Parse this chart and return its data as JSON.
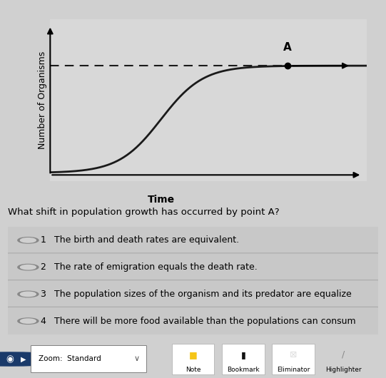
{
  "page_bg": "#d0d0d0",
  "chart_bg": "#d8d8d8",
  "ylabel": "Number of Organisms",
  "xlabel": "Time",
  "ylabel_fontsize": 9,
  "xlabel_fontsize": 10,
  "curve_color": "#1a1a1a",
  "dashed_color": "#1a1a1a",
  "point_A_label": "A",
  "point_A_fontsize": 11,
  "question": "What shift in population growth has occurred by point A?",
  "question_fontsize": 9.5,
  "options": [
    {
      "num": "1",
      "text": "The birth and death rates are equivalent."
    },
    {
      "num": "2",
      "text": "The rate of emigration equals the death rate."
    },
    {
      "num": "3",
      "text": "The population sizes of the organism and its predator are equalize"
    },
    {
      "num": "4",
      "text": "There will be more food available than the populations can consum"
    }
  ],
  "option_fontsize": 9,
  "option_bg": "#c8c8c8",
  "option_border": "#aaaaaa",
  "radio_dark": "#888888",
  "radio_light": "#d0d0d0",
  "toolbar_bg": "#2a4a7a",
  "toolbar_fg": "white",
  "toolbar_items": [
    "Note",
    "Bookmark",
    "Eliminator",
    "Highlighter"
  ]
}
